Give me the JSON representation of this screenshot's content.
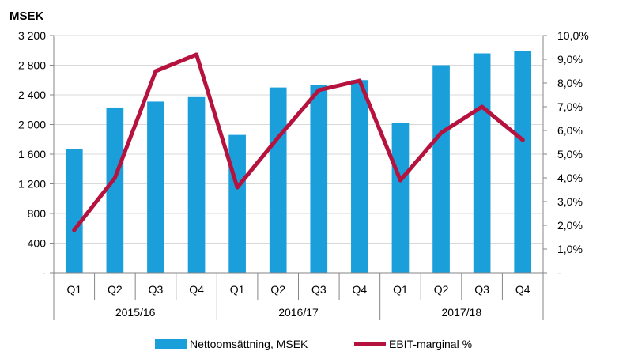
{
  "chart_data": {
    "type": "bar",
    "title": "",
    "ylabel": "MSEK",
    "ylim": [
      0,
      3200
    ],
    "y_ticks": [
      "-",
      "400",
      "800",
      "1 200",
      "1 600",
      "2 000",
      "2 400",
      "2 800",
      "3 200"
    ],
    "y2lim": [
      0,
      10
    ],
    "y2_ticks": [
      "-",
      "1,0%",
      "2,0%",
      "3,0%",
      "4,0%",
      "5,0%",
      "6,0%",
      "7,0%",
      "8,0%",
      "9,0%",
      "10,0%"
    ],
    "categories": [
      "Q1",
      "Q2",
      "Q3",
      "Q4",
      "Q1",
      "Q2",
      "Q3",
      "Q4",
      "Q1",
      "Q2",
      "Q3",
      "Q4"
    ],
    "groups": [
      {
        "label": "2015/16",
        "start": 0,
        "end": 3
      },
      {
        "label": "2016/17",
        "start": 4,
        "end": 7
      },
      {
        "label": "2017/18",
        "start": 8,
        "end": 11
      }
    ],
    "grid": true,
    "legend_position": "bottom",
    "series": [
      {
        "name": "Nettoomsättning, MSEK",
        "type": "bar",
        "axis": "left",
        "color": "#1a9fdb",
        "values": [
          1670,
          2230,
          2310,
          2370,
          1860,
          2500,
          2530,
          2600,
          2020,
          2800,
          2960,
          2990
        ]
      },
      {
        "name": "EBIT-marginal %",
        "type": "line",
        "axis": "right",
        "color": "#b5123e",
        "values": [
          1.8,
          4.0,
          8.5,
          9.2,
          3.6,
          5.7,
          7.7,
          8.1,
          3.9,
          5.9,
          7.0,
          5.6
        ]
      }
    ]
  }
}
